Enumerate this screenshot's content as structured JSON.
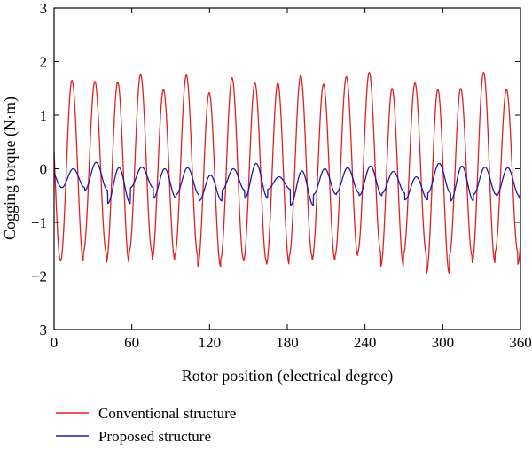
{
  "chart_data": {
    "type": "line",
    "title": "",
    "xlabel": "Rotor position (electrical degree)",
    "ylabel": "Cogging torque (N·m)",
    "xlim": [
      0,
      360
    ],
    "ylim": [
      -3,
      3
    ],
    "xticks": [
      0,
      60,
      120,
      180,
      240,
      300,
      360
    ],
    "yticks": [
      3,
      2,
      1,
      0,
      -1,
      -2,
      -3
    ],
    "ytick_labels": [
      "3",
      "2",
      "1",
      "0",
      "−1",
      "−2",
      "−3"
    ],
    "grid": false,
    "legend_position": "bottom-left, below plot",
    "series": [
      {
        "name": "Conventional structure",
        "color": "#e02020",
        "period": 17.65,
        "phase": 5.0,
        "peaks": [
          1.65,
          1.63,
          1.62,
          1.76,
          1.48,
          1.75,
          1.42,
          1.7,
          1.6,
          1.6,
          1.74,
          1.58,
          1.72,
          1.8,
          1.5,
          1.6,
          1.48,
          1.5,
          1.8,
          1.48,
          1.74,
          1.6,
          1.63
        ],
        "troughs": [
          -1.72,
          -1.55,
          -1.75,
          -1.55,
          -1.7,
          -1.6,
          -1.82,
          -1.68,
          -1.72,
          -1.78,
          -1.62,
          -1.7,
          -1.62,
          -1.55,
          -1.82,
          -1.58,
          -1.95,
          -1.62,
          -1.75,
          -1.55,
          -1.78,
          -1.62,
          -1.6
        ]
      },
      {
        "name": "Proposed structure",
        "color": "#1a1aaa",
        "period": 17.65,
        "phase": 6.0,
        "peaks": [
          0.0,
          0.12,
          0.02,
          0.03,
          0.0,
          0.02,
          -0.12,
          0.0,
          0.1,
          -0.15,
          -0.04,
          0.0,
          0.02,
          0.05,
          -0.05,
          -0.15,
          0.1,
          0.05,
          0.03,
          0.02,
          0.02,
          0.0,
          -0.1
        ],
        "troughs": [
          -0.35,
          -0.4,
          -0.65,
          -0.35,
          -0.55,
          -0.48,
          -0.6,
          -0.4,
          -0.55,
          -0.38,
          -0.68,
          -0.48,
          -0.45,
          -0.5,
          -0.45,
          -0.58,
          -0.45,
          -0.6,
          -0.48,
          -0.5,
          -0.55,
          -0.5,
          -0.55
        ]
      }
    ]
  }
}
